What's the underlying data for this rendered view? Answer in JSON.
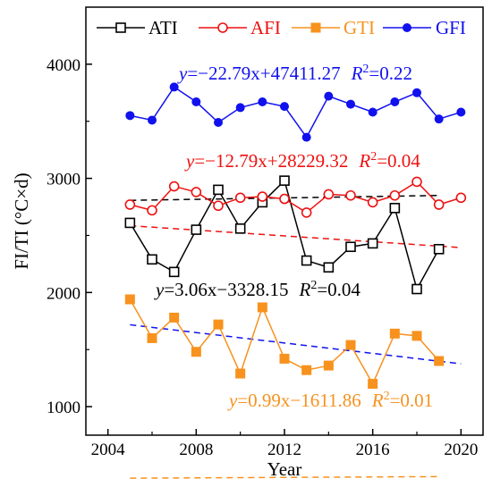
{
  "chart_data": {
    "type": "line",
    "xlabel": "Year",
    "ylabel": "FI/TI (°C×d)",
    "xlim": [
      2003,
      2021
    ],
    "ylim": [
      750,
      4500
    ],
    "xticks": [
      2004,
      2008,
      2012,
      2016,
      2020
    ],
    "yticks": [
      1000,
      2000,
      3000,
      4000
    ],
    "x_tick_labels": [
      "2004",
      "2008",
      "2012",
      "2016",
      "2020"
    ],
    "y_tick_labels": [
      "1000",
      "2000",
      "3000",
      "4000"
    ],
    "legend_position": "top",
    "series": [
      {
        "name": "ATI",
        "color": "#000000",
        "marker": "open-square",
        "x": [
          2005,
          2006,
          2007,
          2008,
          2009,
          2010,
          2011,
          2012,
          2013,
          2014,
          2015,
          2016,
          2017,
          2018,
          2019
        ],
        "values": [
          2610,
          2290,
          2180,
          2550,
          2900,
          2560,
          2790,
          2980,
          2280,
          2220,
          2400,
          2430,
          2740,
          2030,
          2380
        ],
        "trend": {
          "slope": 3.06,
          "intercept": -3328.15,
          "r2": 0.04
        },
        "equation": {
          "y_part": "y",
          "formula": "=3.06x−3328.15",
          "r_part": "R",
          "sup": "2",
          "r_value": "=0.04"
        }
      },
      {
        "name": "AFI",
        "color": "#ee1111",
        "marker": "open-circle",
        "x": [
          2005,
          2006,
          2007,
          2008,
          2009,
          2010,
          2011,
          2012,
          2013,
          2014,
          2015,
          2016,
          2017,
          2018,
          2019,
          2020
        ],
        "values": [
          2770,
          2720,
          2930,
          2880,
          2760,
          2830,
          2840,
          2820,
          2700,
          2860,
          2850,
          2790,
          2850,
          2970,
          2770,
          2830
        ],
        "trend": {
          "slope": -12.79,
          "intercept": 28229.32,
          "r2": 0.04
        },
        "equation": {
          "y_part": "y",
          "formula": "=−12.79x+28229.32",
          "r_part": "R",
          "sup": "2",
          "r_value": "=0.04"
        }
      },
      {
        "name": "GTI",
        "color": "#f7921e",
        "marker": "filled-square",
        "x": [
          2005,
          2006,
          2007,
          2008,
          2009,
          2010,
          2011,
          2012,
          2013,
          2014,
          2015,
          2016,
          2017,
          2018,
          2019
        ],
        "values": [
          1940,
          1600,
          1780,
          1480,
          1720,
          1290,
          1870,
          1420,
          1320,
          1360,
          1540,
          1200,
          1640,
          1620,
          1400
        ],
        "trend": {
          "slope": 0.99,
          "intercept": -1611.86,
          "r2": 0.01
        },
        "equation": {
          "y_part": "y",
          "formula": "=0.99x−1611.86",
          "r_part": "R",
          "sup": "2",
          "r_value": "=0.01"
        }
      },
      {
        "name": "GFI",
        "color": "#1111ee",
        "marker": "filled-circle",
        "x": [
          2005,
          2006,
          2007,
          2008,
          2009,
          2010,
          2011,
          2012,
          2013,
          2014,
          2015,
          2016,
          2017,
          2018,
          2019,
          2020
        ],
        "values": [
          3550,
          3510,
          3800,
          3670,
          3490,
          3620,
          3670,
          3630,
          3360,
          3720,
          3650,
          3580,
          3670,
          3750,
          3520,
          3580
        ],
        "trend": {
          "slope": -22.79,
          "intercept": 47411.27,
          "r2": 0.22
        },
        "equation": {
          "y_part": "y",
          "formula": "=−22.79x+47411.27",
          "r_part": "R",
          "sup": "2",
          "r_value": "=0.22"
        }
      }
    ]
  }
}
